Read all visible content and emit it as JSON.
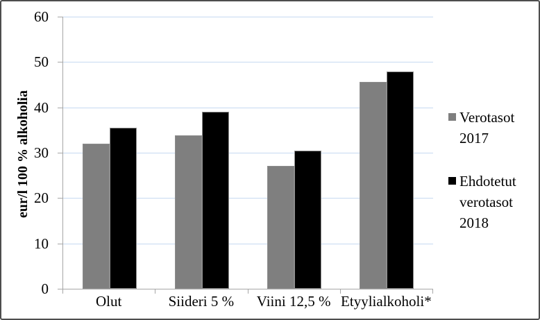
{
  "chart_data": {
    "type": "bar",
    "title": "",
    "categories": [
      "Olut",
      "Siideri 5 %",
      "Viini 12,5 %",
      "Etyylialkoholi*"
    ],
    "series": [
      {
        "name": "Verotasot 2017",
        "color": "#7f7f7f",
        "border_color": "#8c8c8c",
        "values": [
          32.05,
          33.8,
          27.1,
          45.55
        ]
      },
      {
        "name": "Ehdotetut verotasot 2018",
        "color": "#000000",
        "border_color": "#8f8f8f",
        "values": [
          35.55,
          39.0,
          30.5,
          47.85
        ]
      }
    ],
    "xlabel": "",
    "ylabel": "eur/l 100 % alkoholia",
    "ylim": [
      0,
      60
    ],
    "yticks": [
      0,
      10,
      20,
      30,
      40,
      50,
      60
    ],
    "grid": true,
    "gridline_color": "#c6d9f1",
    "axis_color": "#a6a6a6",
    "legend_position": "right"
  },
  "legend": {
    "items": [
      {
        "label": "Verotasot 2017",
        "color": "#7f7f7f"
      },
      {
        "label": "Ehdotetut verotasot 2018",
        "color": "#000000"
      }
    ]
  }
}
